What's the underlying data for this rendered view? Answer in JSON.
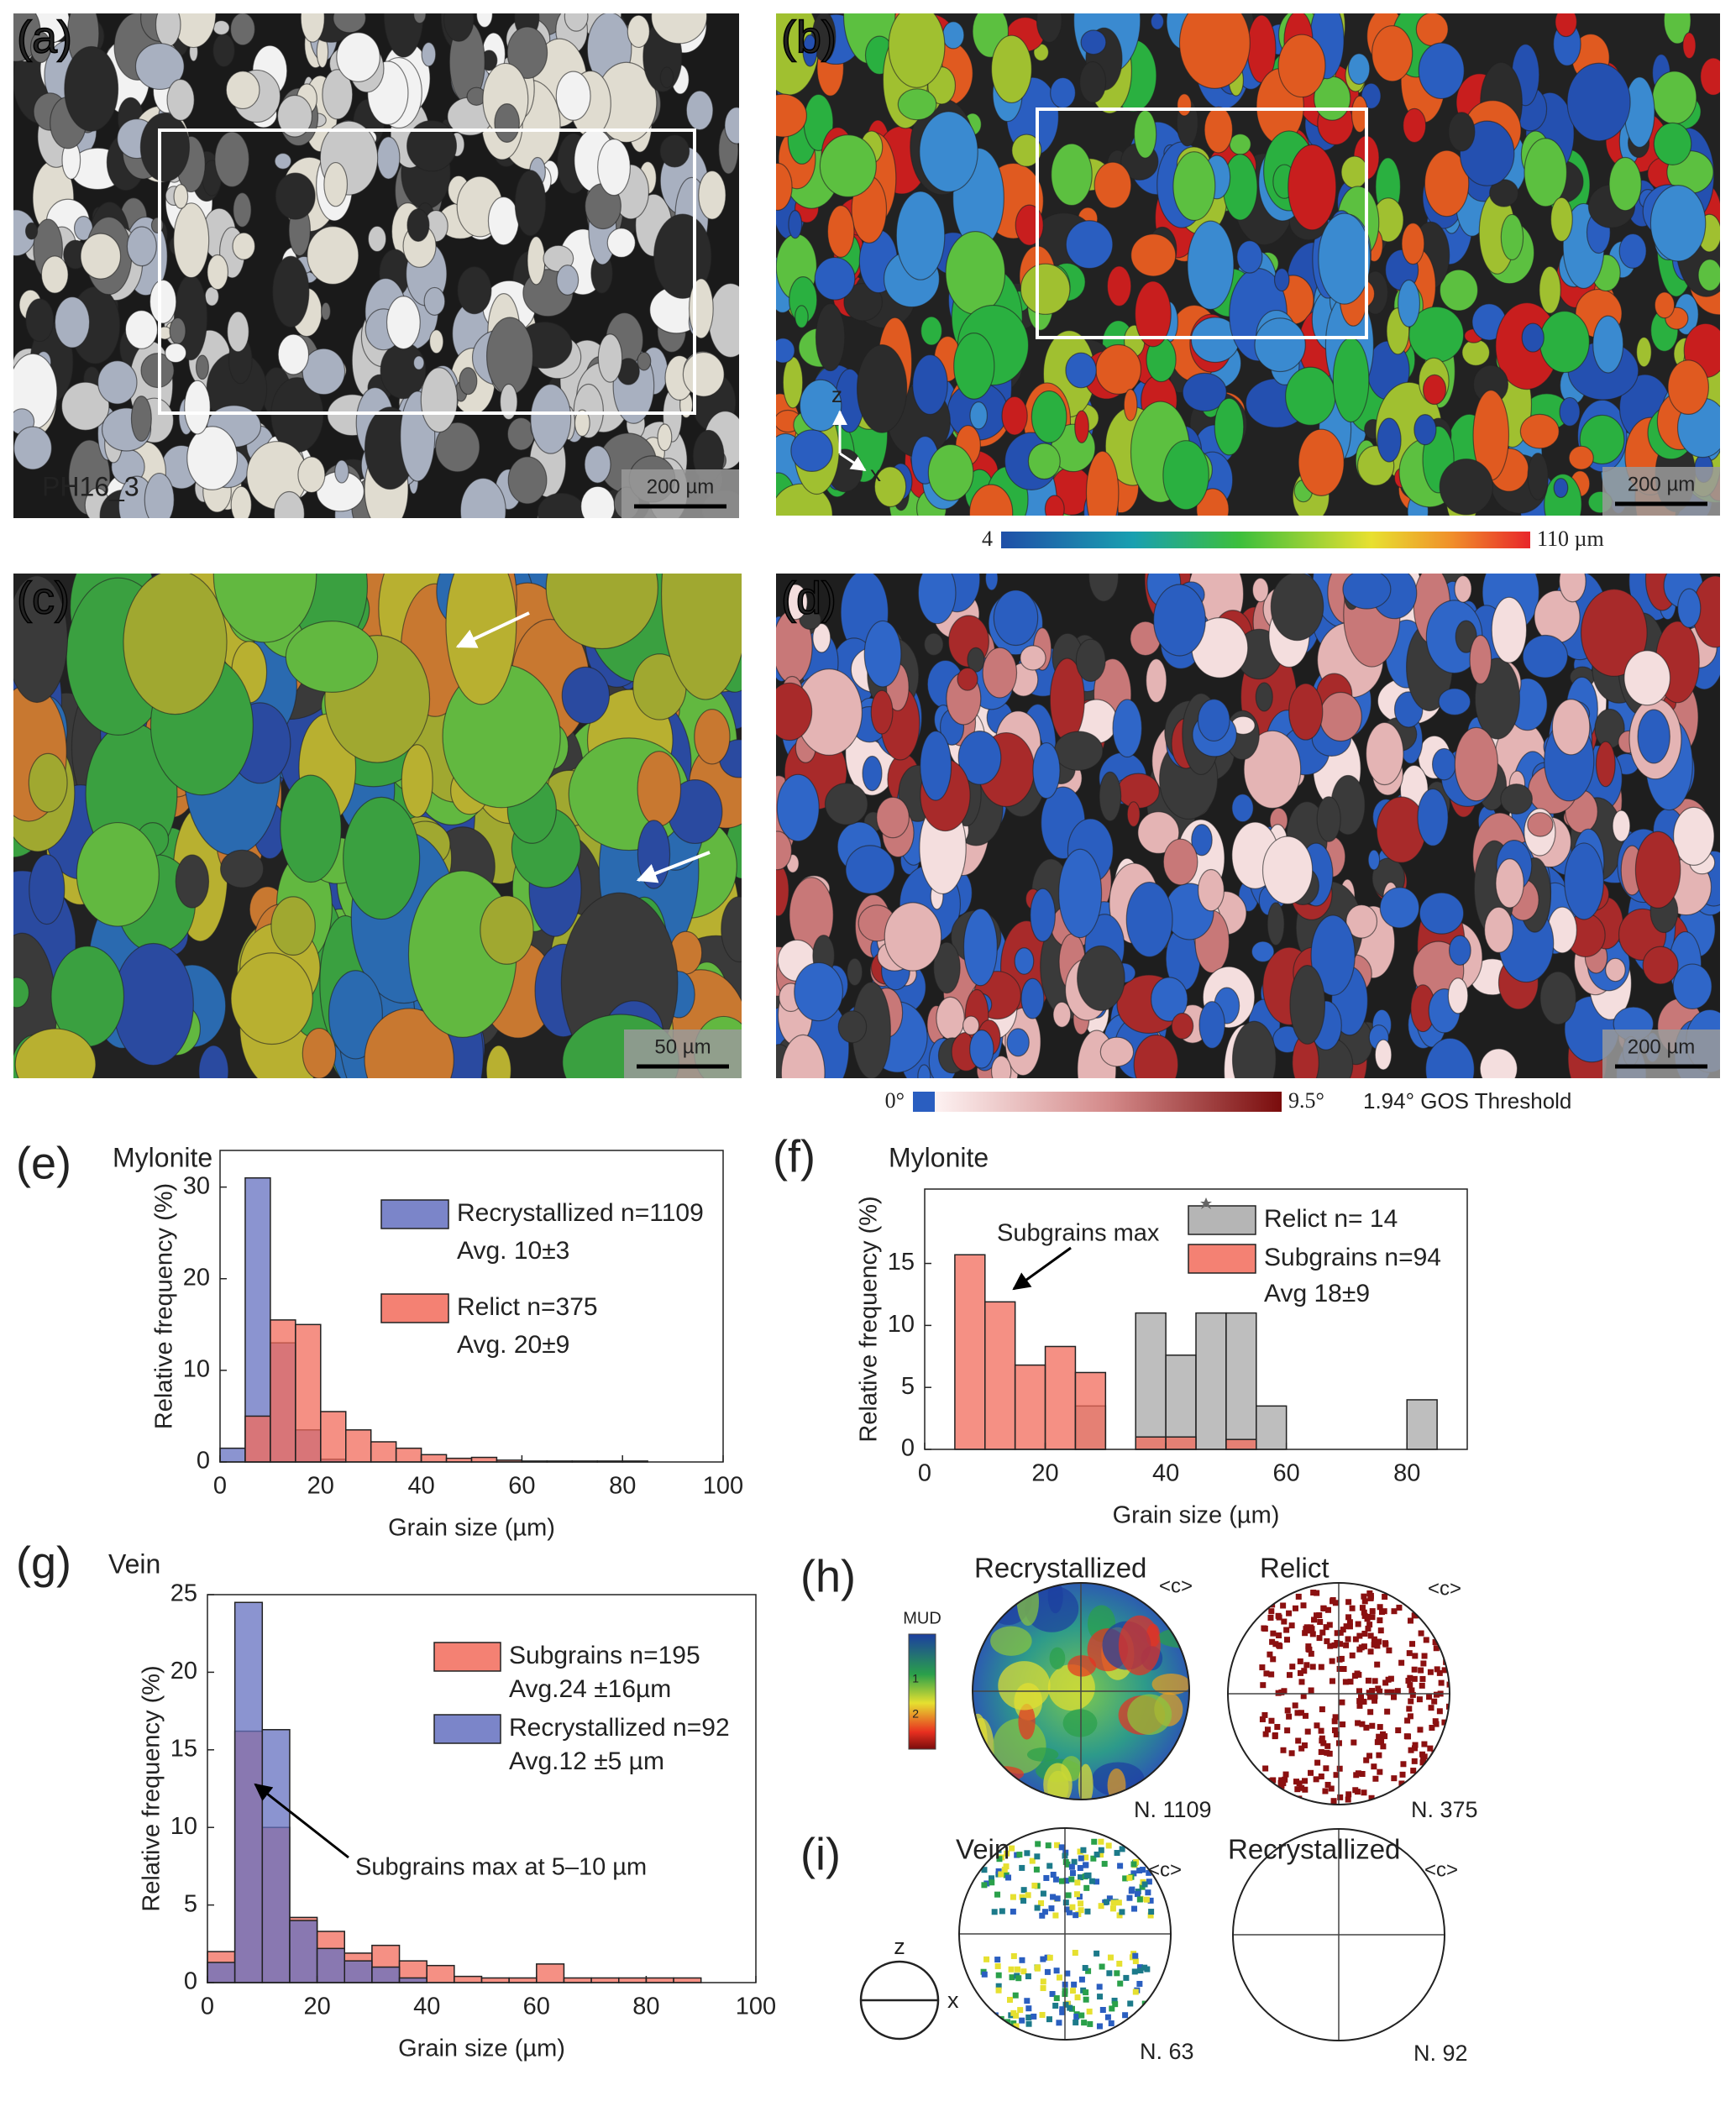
{
  "panels": {
    "a": {
      "label": "(a)",
      "sample": "PH16_3",
      "scale": "200 µm"
    },
    "b": {
      "label": "(b)",
      "scale": "200 µm",
      "axis_z": "z",
      "axis_x": "x",
      "colorbar_min": "4",
      "colorbar_max": "110 µm"
    },
    "c": {
      "label": "(c)",
      "scale": "50 µm"
    },
    "d": {
      "label": "(d)",
      "scale": "200 µm",
      "colorbar_min": "0°",
      "colorbar_max": "9.5°",
      "threshold": "1.94° GOS Threshold"
    },
    "h": {
      "label": "(h)",
      "left_title": "Recrystallized",
      "right_title": "Relict",
      "left_axis": "<c>",
      "right_axis": "<c>",
      "left_n": "N. 1109",
      "right_n": "N. 375",
      "colorbar_title": "MUD",
      "colorbar_tick_1": "1",
      "colorbar_tick_2": "2"
    },
    "i": {
      "label": "(i)",
      "left_title": "Vein",
      "right_title": "Recrystallized",
      "left_axis": "<c>",
      "right_axis": "<c>",
      "left_n": "N. 63",
      "right_n": "N. 92",
      "ref_z": "z",
      "ref_x": "x"
    }
  },
  "chart_data": [
    {
      "type": "histogram",
      "panel": "(e)",
      "title": "Mylonite",
      "x_label": "Grain size (µm)",
      "y_label": "Relative frequency (%)",
      "bins": [
        0,
        5,
        10,
        15,
        20,
        25,
        30,
        35,
        40,
        45,
        50,
        55,
        60,
        65,
        70,
        75,
        80,
        85,
        90,
        95,
        100
      ],
      "series": [
        {
          "name": "Recrystallized n=1109",
          "note": "Avg. 10±3",
          "color": "#6470c0",
          "values": [
            1.5,
            31,
            13,
            3.5,
            0.3,
            0,
            0,
            0,
            0,
            0,
            0,
            0,
            0,
            0,
            0,
            0,
            0,
            0,
            0,
            0
          ]
        },
        {
          "name": "Relict n=375",
          "note": "Avg. 20±9",
          "color": "#f26b5b",
          "values": [
            0,
            5,
            15.5,
            15,
            5.5,
            3.5,
            2.2,
            1.5,
            0.8,
            0.4,
            0.5,
            0.2,
            0.1,
            0.1,
            0.1,
            0.1,
            0.1,
            0,
            0,
            0
          ]
        }
      ],
      "xlim": [
        0,
        100
      ],
      "xticks": [
        0,
        20,
        40,
        60,
        80,
        100
      ],
      "ylim": [
        0,
        34
      ],
      "yticks": [
        0,
        10,
        20,
        30
      ]
    },
    {
      "type": "histogram",
      "panel": "(f)",
      "title": "Mylonite",
      "x_label": "Grain size (µm)",
      "y_label": "Relative frequency (%)",
      "annotation": "Subgrains max",
      "bins": [
        0,
        5,
        10,
        15,
        20,
        25,
        30,
        35,
        40,
        45,
        50,
        55,
        60,
        65,
        70,
        75,
        80,
        85,
        90
      ],
      "series": [
        {
          "name": "Relict n= 14",
          "color": "#a8a8a8",
          "values": [
            0,
            0,
            0,
            0,
            0,
            3.5,
            0,
            11,
            7.6,
            11,
            11,
            3.5,
            0,
            0,
            0,
            0,
            4,
            0
          ]
        },
        {
          "name": "Subgrains n=94",
          "note": "Avg 18±9",
          "color": "#f26b5b",
          "values": [
            0,
            15.7,
            11.9,
            6.8,
            8.3,
            6.2,
            0,
            1.0,
            1.0,
            0,
            0.8,
            0,
            0,
            0,
            0,
            0,
            0,
            0
          ]
        }
      ],
      "xlim": [
        0,
        90
      ],
      "xticks": [
        0,
        20,
        40,
        60,
        80
      ],
      "ylim": [
        0,
        21
      ],
      "yticks": [
        0,
        5,
        10,
        15
      ]
    },
    {
      "type": "histogram",
      "panel": "(g)",
      "title": "Vein",
      "x_label": "Grain size (µm)",
      "y_label": "Relative frequency (%)",
      "annotation": "Subgrains max at 5–10 µm",
      "bins": [
        0,
        5,
        10,
        15,
        20,
        25,
        30,
        35,
        40,
        45,
        50,
        55,
        60,
        65,
        70,
        75,
        80,
        85,
        90,
        95,
        100
      ],
      "series": [
        {
          "name": "Subgrains n=195",
          "note": "Avg.24 ±16µm",
          "color": "#f26b5b",
          "values": [
            2,
            16.2,
            10,
            4.2,
            3.3,
            1.9,
            2.4,
            1.4,
            1.1,
            0.4,
            0.3,
            0.3,
            1.2,
            0.3,
            0.3,
            0.3,
            0.3,
            0.3,
            0,
            0
          ]
        },
        {
          "name": "Recrystallized n=92",
          "note": "Avg.12 ±5 µm",
          "color": "#6470c0",
          "values": [
            1.3,
            24.5,
            16.3,
            4.0,
            2.2,
            1.4,
            1.0,
            0.3,
            0,
            0,
            0,
            0,
            0,
            0,
            0,
            0,
            0,
            0,
            0,
            0
          ]
        }
      ],
      "xlim": [
        0,
        100
      ],
      "xticks": [
        0,
        20,
        40,
        60,
        80,
        100
      ],
      "ylim": [
        0,
        25
      ],
      "yticks": [
        0,
        5,
        10,
        15,
        20,
        25
      ]
    }
  ]
}
